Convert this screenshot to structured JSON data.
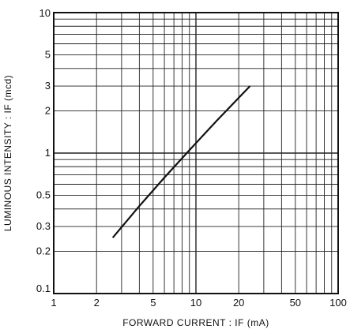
{
  "chart_data": {
    "type": "line",
    "title": "",
    "xlabel": "FORWARD CURRENT : IF (mA)",
    "ylabel": "LUMINOUS INTENSITY : IF (mcd)",
    "x_scale": "log",
    "y_scale": "log",
    "xlim": [
      1,
      100
    ],
    "ylim": [
      0.1,
      10
    ],
    "x_ticks": [
      1,
      2,
      5,
      10,
      20,
      50,
      100
    ],
    "x_tick_labels": [
      "1",
      "2",
      "5",
      "10",
      "20",
      "50",
      "100"
    ],
    "y_ticks": [
      0.1,
      0.2,
      0.3,
      0.5,
      1,
      2,
      3,
      5,
      10
    ],
    "y_tick_labels": [
      "0.1",
      "0.2",
      "0.3",
      "0.5",
      "1",
      "2",
      "3",
      "5",
      "10"
    ],
    "grid": true,
    "series": [
      {
        "name": "",
        "x": [
          2.6,
          4,
          6,
          9,
          14,
          24
        ],
        "y": [
          0.25,
          0.42,
          0.67,
          1.05,
          1.7,
          3.0
        ]
      }
    ],
    "colors": {
      "line": "#111111",
      "grid": "#222222",
      "background": "#ffffff"
    }
  }
}
